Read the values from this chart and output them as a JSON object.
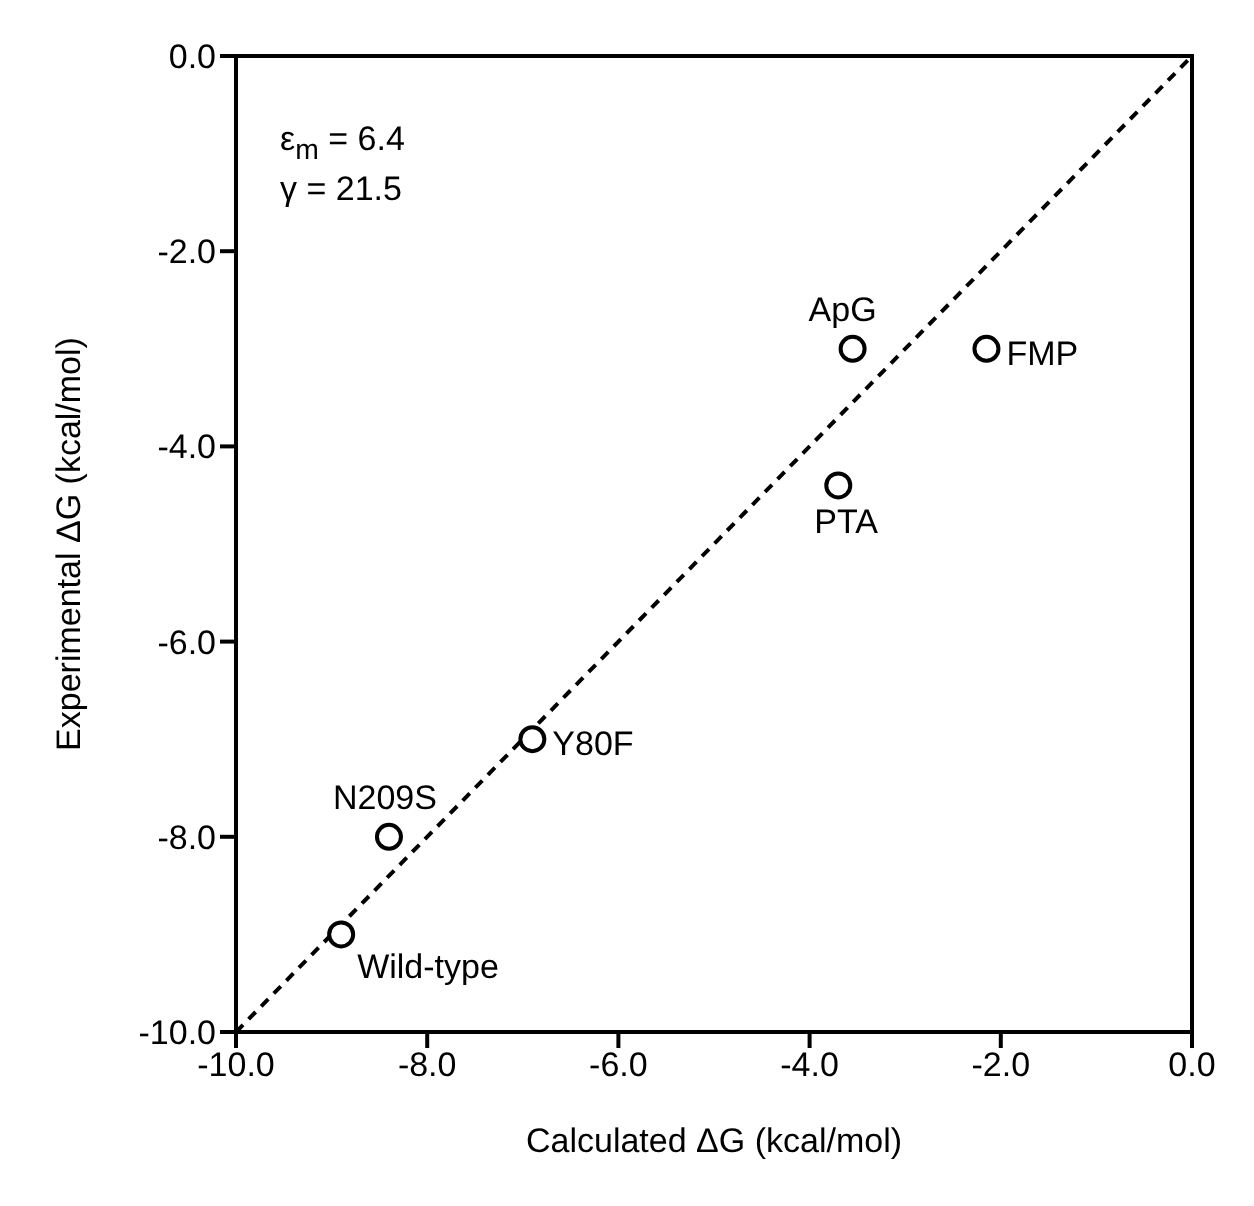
{
  "chart_data": {
    "type": "scatter",
    "xlabel": "Calculated ΔG (kcal/mol)",
    "ylabel": "Experimental ΔG (kcal/mol)",
    "x": [
      -8.9,
      -8.4,
      -6.9,
      -3.7,
      -3.55,
      -2.15
    ],
    "series": [
      {
        "color": "#000000",
        "marker": "circle",
        "values": [
          -9.0,
          -8.0,
          -7.0,
          -4.4,
          -3.0,
          -3.0
        ]
      },
      {
        "type": "line",
        "color": "#000000",
        "line_style": "dashed",
        "marker": "none",
        "x": [
          -10,
          0
        ],
        "values": [
          -10,
          0
        ]
      }
    ],
    "xlim": [
      -10,
      0
    ],
    "ylim": [
      -10,
      0
    ],
    "xticks": [
      {
        "value": -10,
        "label": "-10.0"
      },
      {
        "value": -8,
        "label": "-8.0"
      },
      {
        "value": -6,
        "label": "-6.0"
      },
      {
        "value": -4,
        "label": "-4.0"
      },
      {
        "value": -2,
        "label": "-2.0"
      },
      {
        "value": 0,
        "label": "0.0"
      }
    ],
    "yticks": [
      {
        "value": -10,
        "label": "-10.0"
      },
      {
        "value": -8,
        "label": "-8.0"
      },
      {
        "value": -6,
        "label": "-6.0"
      },
      {
        "value": -4,
        "label": "-4.0"
      },
      {
        "value": -2,
        "label": "-2.0"
      },
      {
        "value": 0,
        "label": "0.0"
      }
    ],
    "grid": false,
    "legend": false,
    "annotations": [
      "ε$_{m}$ = 6.4\nγ = 21.5",
      {
        "text": "Wild-type",
        "x": -8.9,
        "y": -9.0
      },
      {
        "text": "N209S",
        "x": -8.4,
        "y": -8.0
      },
      {
        "text": "Y80F",
        "x": -6.9,
        "y": -7.0
      },
      {
        "text": "PTA",
        "x": -3.7,
        "y": -4.4
      },
      {
        "text": "ApG",
        "x": -3.55,
        "y": -3.0
      },
      {
        "text": "FMP",
        "x": -2.15,
        "y": -3.0
      }
    ]
  }
}
